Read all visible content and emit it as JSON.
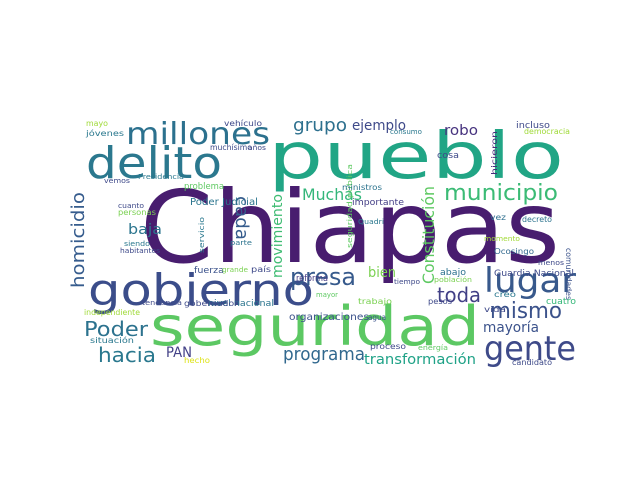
{
  "words": [
    {
      "text": "Chiapas",
      "color": "#481d6f"
    },
    {
      "text": "pueblo",
      "color": "#21a585"
    },
    {
      "text": "seguridad",
      "color": "#5cc863"
    },
    {
      "text": "gobierno",
      "color": "#3b4d8a"
    },
    {
      "text": "delito",
      "color": "#2b788e"
    },
    {
      "text": "millones",
      "color": "#2c718e"
    },
    {
      "text": "gente",
      "color": "#3e4a89"
    },
    {
      "text": "lugar",
      "color": "#38598c"
    },
    {
      "text": "mismo",
      "color": "#3b528b"
    },
    {
      "text": "municipio",
      "color": "#3bbb75"
    },
    {
      "text": "presa",
      "color": "#375a8c"
    },
    {
      "text": "programa",
      "color": "#31688e"
    },
    {
      "text": "hacia",
      "color": "#2a788e"
    },
    {
      "text": "Poder",
      "color": "#2c728e"
    },
    {
      "text": "toda",
      "color": "#424086"
    },
    {
      "text": "grupo",
      "color": "#2d708e"
    },
    {
      "text": "Muchas",
      "color": "#33b67a"
    },
    {
      "text": "homicidio",
      "color": "#365c8d"
    },
    {
      "text": "movimiento",
      "color": "#3fbc73"
    },
    {
      "text": "Constitución",
      "color": "#5ec962"
    },
    {
      "text": "cada",
      "color": "#365c8d"
    },
    {
      "text": "transformación",
      "color": "#1fa287"
    },
    {
      "text": "mayoría",
      "color": "#3b528b"
    },
    {
      "text": "ejemplo",
      "color": "#3e4989"
    },
    {
      "text": "robo",
      "color": "#46327e"
    },
    {
      "text": "baja",
      "color": "#2b758e"
    },
    {
      "text": "PAN",
      "color": "#424086"
    },
    {
      "text": "bien",
      "color": "#7ad151"
    },
    {
      "text": "organizaciones",
      "color": "#3b528b"
    },
    {
      "text": "Guardia Nacional",
      "color": "#3e4a89"
    },
    {
      "text": "nivel nacional",
      "color": "#2b758e"
    },
    {
      "text": "Poder Judicial",
      "color": "#2b758e"
    },
    {
      "text": "importante",
      "color": "#433e85"
    },
    {
      "text": "seguridad pública",
      "color": "#5ec962"
    },
    {
      "text": "reforma",
      "color": "#443a83"
    },
    {
      "text": "fuerza",
      "color": "#3b528b"
    },
    {
      "text": "gobernador",
      "color": "#3e4a89"
    },
    {
      "text": "incluso",
      "color": "#3e4989"
    },
    {
      "text": "democracia",
      "color": "#a0da39"
    },
    {
      "text": "hicieron",
      "color": "#472c7a"
    },
    {
      "text": "cosa",
      "color": "#3e4989"
    },
    {
      "text": "vez",
      "color": "#2e6f8e"
    },
    {
      "text": "decreto",
      "color": "#2c738e"
    },
    {
      "text": "comunidades",
      "color": "#3b528b"
    },
    {
      "text": "momento",
      "color": "#a2da37"
    },
    {
      "text": "menos",
      "color": "#3e4989"
    },
    {
      "text": "vida",
      "color": "#3e4989"
    },
    {
      "text": "creo",
      "color": "#2a788e"
    },
    {
      "text": "cuatro",
      "color": "#35b779"
    },
    {
      "text": "candidato",
      "color": "#3e4a89"
    },
    {
      "text": "Ocosingo",
      "color": "#31688e"
    },
    {
      "text": "abajo",
      "color": "#2c718e"
    },
    {
      "text": "tiempo",
      "color": "#3e4989"
    },
    {
      "text": "población",
      "color": "#7ad151"
    },
    {
      "text": "pesos",
      "color": "#3e4989"
    },
    {
      "text": "energía",
      "color": "#5ec962"
    },
    {
      "text": "proceso",
      "color": "#3e4989"
    },
    {
      "text": "agua",
      "color": "#3b528b"
    },
    {
      "text": "trabajo",
      "color": "#7ad151"
    },
    {
      "text": "mayor",
      "color": "#5ec962"
    },
    {
      "text": "Quadri",
      "color": "#2a788e"
    },
    {
      "text": "ministros",
      "color": "#2c738e"
    },
    {
      "text": "consumo",
      "color": "#2a788e"
    },
    {
      "text": "vehículo",
      "color": "#3e4989"
    },
    {
      "text": "años",
      "color": "#3e4989"
    },
    {
      "text": "muchísimo",
      "color": "#3e4989"
    },
    {
      "text": "Presidencia",
      "color": "#2a788e"
    },
    {
      "text": "problema",
      "color": "#5ec962"
    },
    {
      "text": "cuanto",
      "color": "#3e4989"
    },
    {
      "text": "personas",
      "color": "#7ad151"
    },
    {
      "text": "servicio",
      "color": "#2a788e"
    },
    {
      "text": "parte",
      "color": "#2c738e"
    },
    {
      "text": "siendo",
      "color": "#2a788e"
    },
    {
      "text": "habitantes",
      "color": "#3e4989"
    },
    {
      "text": "grande",
      "color": "#7ad151"
    },
    {
      "text": "país",
      "color": "#3e4989"
    },
    {
      "text": "tendencia",
      "color": "#3e4989"
    },
    {
      "text": "independiente",
      "color": "#a0da39"
    },
    {
      "text": "situación",
      "color": "#2a788e"
    },
    {
      "text": "hecho",
      "color": "#dde318"
    },
    {
      "text": "mayo",
      "color": "#a0da39"
    },
    {
      "text": "jóvenes",
      "color": "#2a788e"
    },
    {
      "text": "vemos",
      "color": "#3e4989"
    }
  ]
}
